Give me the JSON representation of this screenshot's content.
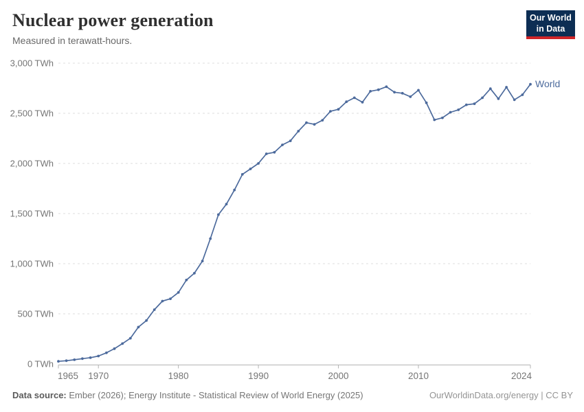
{
  "header": {
    "title": "Nuclear power generation",
    "subtitle": "Measured in terawatt-hours."
  },
  "logo": {
    "line1": "Our World",
    "line2": "in Data",
    "bg_color": "#0d2e54",
    "bar_color": "#cf2428"
  },
  "colors": {
    "series_line": "#4C6A9C",
    "gridline": "#dddddd",
    "axis": "#b3b3b3",
    "tick_label": "#757575"
  },
  "chart_data": {
    "type": "line",
    "title": "Nuclear power generation",
    "subtitle": "Measured in terawatt-hours.",
    "xlabel": "",
    "ylabel": "",
    "xlim": [
      1965,
      2024
    ],
    "ylim": [
      0,
      3000
    ],
    "grid": "dashed-horizontal",
    "legend_position": "end-of-line-label",
    "x": [
      1965,
      1966,
      1967,
      1968,
      1969,
      1970,
      1971,
      1972,
      1973,
      1974,
      1975,
      1976,
      1977,
      1978,
      1979,
      1980,
      1981,
      1982,
      1983,
      1984,
      1985,
      1986,
      1987,
      1988,
      1989,
      1990,
      1991,
      1992,
      1993,
      1994,
      1995,
      1996,
      1997,
      1998,
      1999,
      2000,
      2001,
      2002,
      2003,
      2004,
      2005,
      2006,
      2007,
      2008,
      2009,
      2010,
      2011,
      2012,
      2013,
      2014,
      2015,
      2016,
      2017,
      2018,
      2019,
      2020,
      2021,
      2022,
      2023,
      2024
    ],
    "series": [
      {
        "name": "World",
        "color": "#4C6A9C",
        "values": [
          26,
          32,
          42,
          53,
          62,
          79,
          111,
          152,
          203,
          256,
          367,
          433,
          541,
          627,
          650,
          713,
          837,
          905,
          1026,
          1250,
          1489,
          1594,
          1735,
          1891,
          1945,
          2000,
          2096,
          2111,
          2185,
          2225,
          2322,
          2406,
          2390,
          2431,
          2520,
          2540,
          2615,
          2655,
          2610,
          2720,
          2735,
          2765,
          2710,
          2700,
          2665,
          2730,
          2605,
          2435,
          2455,
          2510,
          2535,
          2585,
          2595,
          2655,
          2745,
          2645,
          2760,
          2635,
          2685,
          2790
        ]
      }
    ],
    "x_ticks": [
      1965,
      1970,
      1980,
      1990,
      2000,
      2010,
      2024
    ],
    "x_tick_labels": [
      "1965",
      "1970",
      "1980",
      "1990",
      "2000",
      "2010",
      "2024"
    ],
    "y_ticks": [
      0,
      500,
      1000,
      1500,
      2000,
      2500,
      3000
    ],
    "y_tick_labels": [
      "0 TWh",
      "500 TWh",
      "1,000 TWh",
      "1,500 TWh",
      "2,000 TWh",
      "2,500 TWh",
      "3,000 TWh"
    ]
  },
  "footer": {
    "source_label": "Data source:",
    "source_text": "Ember (2026); Energy Institute - Statistical Review of World Energy (2025)",
    "right_text": "OurWorldinData.org/energy | CC BY"
  }
}
